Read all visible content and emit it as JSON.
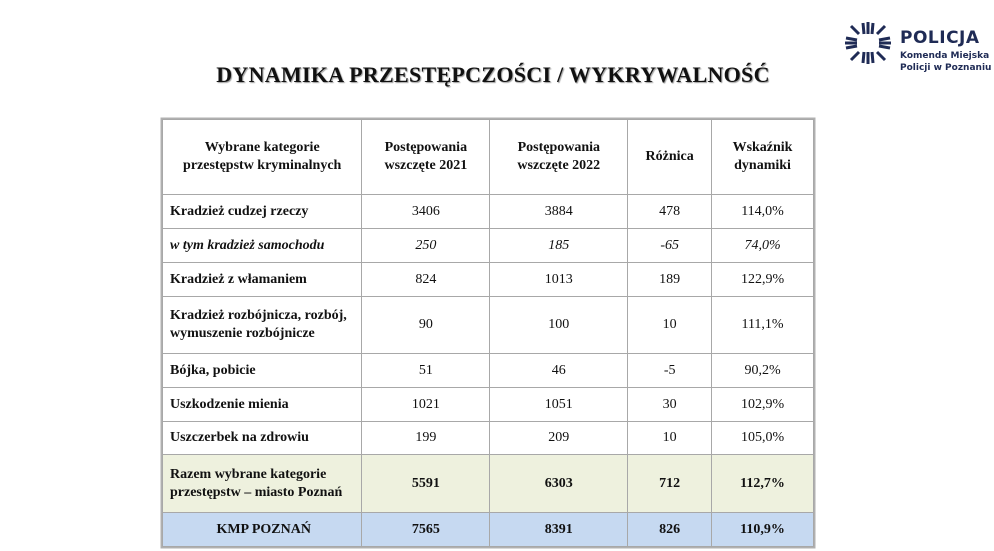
{
  "title": "DYNAMIKA  PRZESTĘPCZOŚCI / WYKRYWALNOŚĆ",
  "logo": {
    "name": "POLICJA",
    "line1": "Komenda Miejska",
    "line2": "Policji w Poznaniu",
    "color": "#1f2b55",
    "icon": "police-star-icon"
  },
  "table": {
    "headers": [
      "Wybrane kategorie przestępstw kryminalnych",
      "Postępowania wszczęte 2021",
      "Postępowania wszczęte 2022",
      "Różnica",
      "Wskaźnik dynamiki"
    ],
    "rows": [
      [
        "Kradzież cudzej rzeczy",
        "3406",
        "3884",
        "478",
        "114,0%"
      ],
      [
        "w tym kradzież samochodu",
        "250",
        "185",
        "-65",
        "74,0%"
      ],
      [
        "Kradzież z włamaniem",
        "824",
        "1013",
        "189",
        "122,9%"
      ],
      [
        "Kradzież rozbójnicza, rozbój, wymuszenie rozbójnicze",
        "90",
        "100",
        "10",
        "111,1%"
      ],
      [
        "Bójka, pobicie",
        "51",
        "46",
        "-5",
        "90,2%"
      ],
      [
        "Uszkodzenie mienia",
        "1021",
        "1051",
        "30",
        "102,9%"
      ],
      [
        "Uszczerbek na zdrowiu",
        "199",
        "209",
        "10",
        "105,0%"
      ],
      [
        "Razem wybrane kategorie przestępstw – miasto Poznań",
        "5591",
        "6303",
        "712",
        "112,7%"
      ],
      [
        "KMP POZNAŃ",
        "7565",
        "8391",
        "826",
        "110,9%"
      ]
    ],
    "colors": {
      "summary_row": "#eef1de",
      "kmp_row": "#c6d9f1"
    }
  }
}
